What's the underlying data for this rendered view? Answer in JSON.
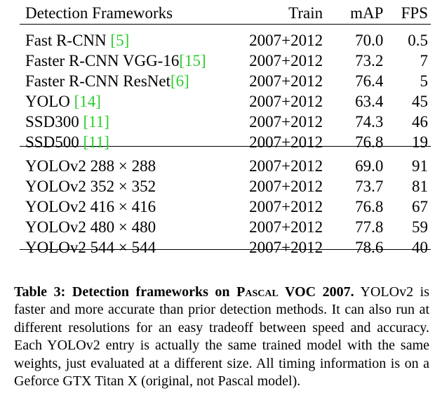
{
  "table": {
    "header": {
      "framework": "Detection Frameworks",
      "train": "Train",
      "map": "mAP",
      "fps": "FPS"
    },
    "group1": [
      {
        "name": "Fast R-CNN ",
        "cite": "[5]",
        "train": "2007+2012",
        "map": "70.0",
        "fps": "0.5"
      },
      {
        "name": "Faster R-CNN VGG-16",
        "cite": "[15]",
        "train": "2007+2012",
        "map": "73.2",
        "fps": "7"
      },
      {
        "name": "Faster R-CNN ResNet",
        "cite": "[6]",
        "train": "2007+2012",
        "map": "76.4",
        "fps": "5"
      },
      {
        "name": "YOLO ",
        "cite": "[14]",
        "train": "2007+2012",
        "map": "63.4",
        "fps": "45"
      },
      {
        "name": "SSD300 ",
        "cite": "[11]",
        "train": "2007+2012",
        "map": "74.3",
        "fps": "46"
      },
      {
        "name": "SSD500 ",
        "cite": "[11]",
        "train": "2007+2012",
        "map": "76.8",
        "fps": "19"
      }
    ],
    "group2": [
      {
        "name": "YOLOv2 288 × 288",
        "train": "2007+2012",
        "map": "69.0",
        "fps": "91"
      },
      {
        "name": "YOLOv2 352 × 352",
        "train": "2007+2012",
        "map": "73.7",
        "fps": "81"
      },
      {
        "name": "YOLOv2 416 × 416",
        "train": "2007+2012",
        "map": "76.8",
        "fps": "67"
      },
      {
        "name": "YOLOv2 480 × 480",
        "train": "2007+2012",
        "map": "77.8",
        "fps": "59"
      },
      {
        "name": "YOLOv2 544 × 544",
        "train": "2007+2012",
        "map": "78.6",
        "fps": "40",
        "map_bold": true
      }
    ]
  },
  "caption": {
    "lead_prefix": "Table 3: Detection frameworks on ",
    "lead_smallcaps": "Pascal",
    "lead_suffix": " VOC 2007.",
    "body": "YOLOv2 is faster and more accurate than prior detection methods. It can also run at different resolutions for an easy tradeoff between speed and accuracy. Each YOLOv2 entry is actually the same trained model with the same weights, just evaluated at a different size. All timing information is on a Geforce GTX Titan X (original, not Pascal model)."
  }
}
